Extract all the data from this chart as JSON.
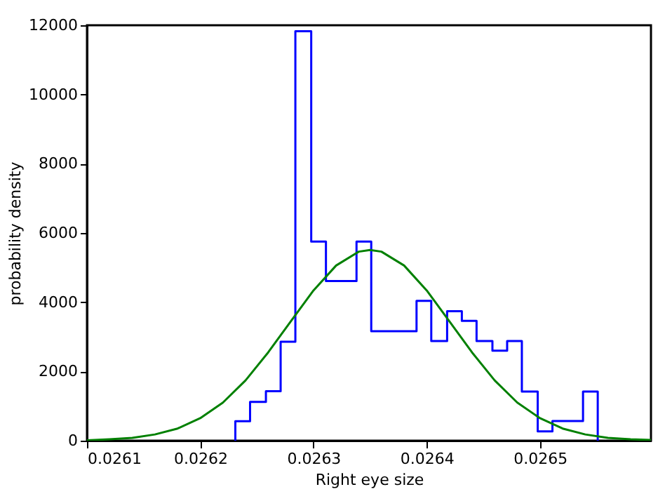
{
  "chart_data": {
    "type": "histogram",
    "xlabel": "Right eye size",
    "ylabel": "probability density",
    "xlim": [
      0.0261,
      0.026598
    ],
    "xticks": [
      0.0261,
      0.0262,
      0.0263,
      0.0264,
      0.0265
    ],
    "ylim": [
      0,
      12000
    ],
    "yticks": [
      0,
      2000,
      4000,
      6000,
      8000,
      10000,
      12000
    ],
    "grid": false,
    "series": [
      {
        "color": "#0000ff",
        "bins": [
          0.026231,
          0.026244,
          0.026258,
          0.026271,
          0.026284,
          0.026298,
          0.026311,
          0.026324,
          0.026338,
          0.026351,
          0.026364,
          0.026378,
          0.026391,
          0.026404,
          0.026418,
          0.026431,
          0.026444,
          0.026458,
          0.026471,
          0.026484,
          0.026498,
          0.026511,
          0.026524,
          0.026538,
          0.026551
        ],
        "values": [
          560,
          1120,
          1430,
          2860,
          11830,
          5750,
          4610,
          4610,
          5750,
          3160,
          3160,
          3160,
          4040,
          2880,
          3740,
          3460,
          2880,
          2600,
          2880,
          1420,
          270,
          570,
          570,
          1420
        ]
      },
      {
        "type": "line",
        "color": "#008000",
        "x": [
          0.0261,
          0.02612,
          0.02614,
          0.02616,
          0.02618,
          0.0262,
          0.02622,
          0.02624,
          0.02626,
          0.02628,
          0.0263,
          0.02632,
          0.02634,
          0.02635,
          0.02636,
          0.02638,
          0.0264,
          0.02642,
          0.02644,
          0.02646,
          0.02648,
          0.0265,
          0.02652,
          0.02654,
          0.02656,
          0.02658,
          0.026598
        ],
        "values": [
          10,
          40,
          80,
          180,
          350,
          650,
          1100,
          1740,
          2550,
          3450,
          4340,
          5060,
          5460,
          5510,
          5460,
          5060,
          4340,
          3450,
          2550,
          1740,
          1100,
          650,
          350,
          180,
          80,
          40,
          20
        ]
      }
    ]
  }
}
